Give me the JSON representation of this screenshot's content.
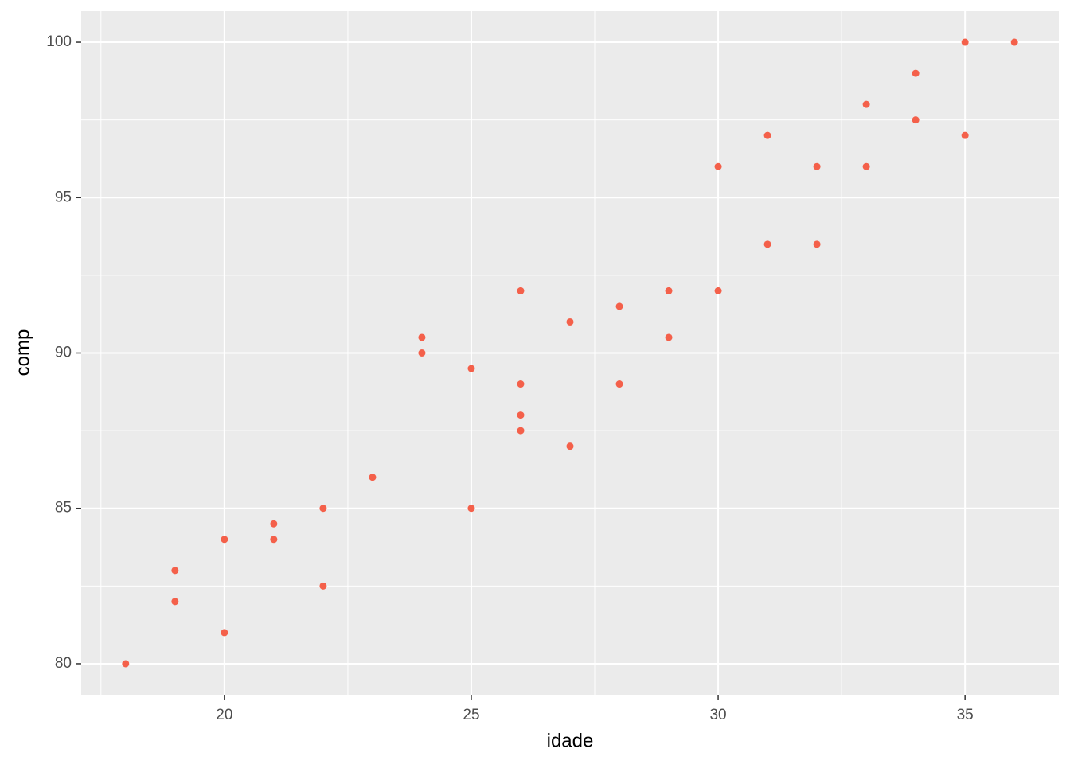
{
  "chart_data": {
    "type": "scatter",
    "x_label": "idade",
    "y_label": "comp",
    "x": [
      18,
      19,
      19,
      20,
      20,
      21,
      21,
      22,
      22,
      23,
      24,
      24,
      25,
      25,
      26,
      26,
      26,
      26,
      27,
      27,
      28,
      28,
      29,
      29,
      30,
      30,
      31,
      31,
      32,
      32,
      33,
      33,
      34,
      34,
      35,
      35,
      36
    ],
    "values": [
      80,
      83,
      82,
      84,
      81,
      84.5,
      84,
      85,
      82.5,
      86,
      90.5,
      90,
      89.5,
      85,
      92,
      89,
      88,
      87.5,
      91,
      87,
      91.5,
      89,
      92,
      90.5,
      96,
      92,
      97,
      93.5,
      96,
      93.5,
      98,
      96,
      99,
      97.5,
      100,
      97,
      100
    ],
    "color": "#f4604a",
    "xlim": [
      17.1,
      36.9
    ],
    "ylim": [
      79,
      101
    ],
    "xticks": [
      20,
      25,
      30,
      35
    ],
    "yticks": [
      80,
      85,
      90,
      95,
      100
    ],
    "grid": true,
    "minor_grid": true
  }
}
